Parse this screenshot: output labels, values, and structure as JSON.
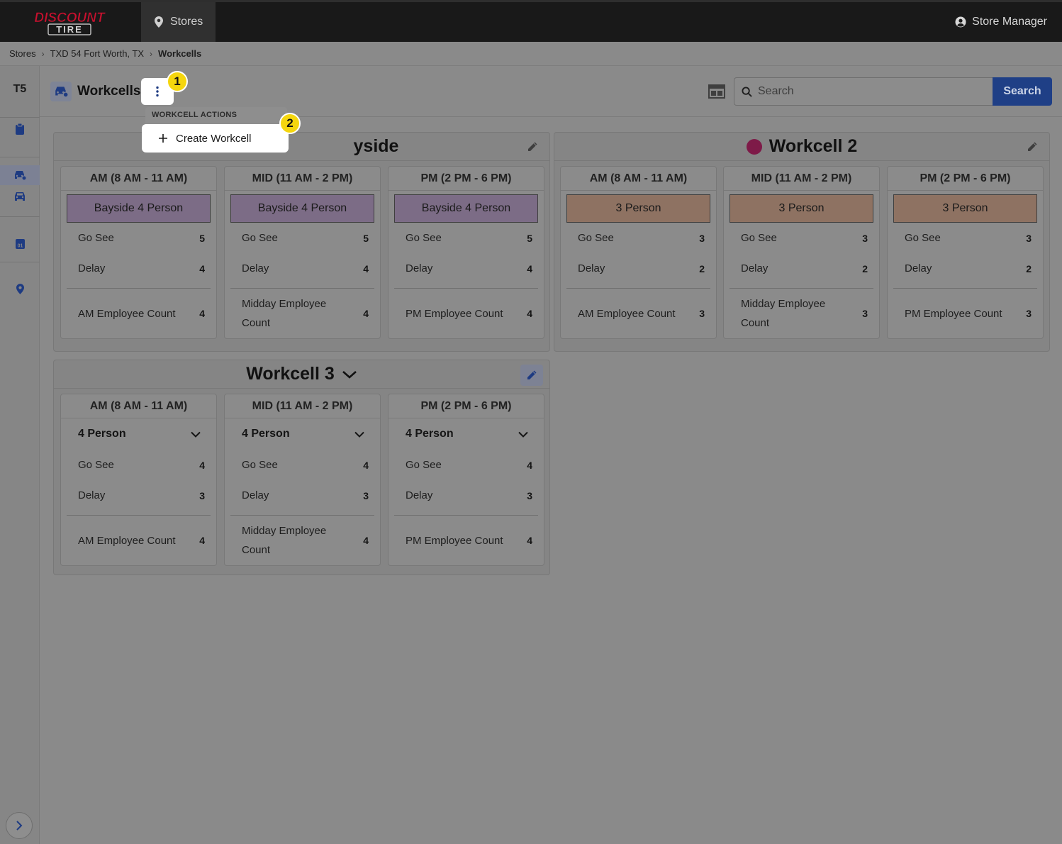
{
  "brand": {
    "line1": "DISCOUNT",
    "line2": "TIRE",
    "red": "#c8102e"
  },
  "topnav": {
    "stores_label": "Stores",
    "user_label": "Store Manager"
  },
  "breadcrumb": [
    "Stores",
    "TXD 54 Fort Worth, TX",
    "Workcells"
  ],
  "sidebar": {
    "store_code": "T5",
    "icons": [
      "clipboard-icon",
      "car-wrench-icon",
      "car-icon",
      "calendar-icon",
      "location-pin-icon",
      "chevron-right-icon"
    ]
  },
  "header": {
    "title": "Workcells",
    "search_placeholder": "Search",
    "search_button": "Search"
  },
  "menu": {
    "title": "WORKCELL ACTIONS",
    "create_label": "Create Workcell"
  },
  "steps": {
    "one": "1",
    "two": "2"
  },
  "colors": {
    "accent_blue": "#1f3f86",
    "workcell2_dot": "#7e1a48",
    "step_marker": "#f5d60e"
  },
  "workcells": [
    {
      "name": "yside",
      "columns": [
        {
          "header": "AM (8 AM - 11 AM)",
          "shift": "Bayside 4 Person",
          "go_see_label": "Go See",
          "go_see": "5",
          "delay_label": "Delay",
          "delay": "4",
          "employee_label": "AM Employee Count",
          "employee_count": "4"
        },
        {
          "header": "MID (11 AM - 2 PM)",
          "shift": "Bayside 4 Person",
          "go_see_label": "Go See",
          "go_see": "5",
          "delay_label": "Delay",
          "delay": "4",
          "employee_label": "Midday Employee Count",
          "employee_count": "4"
        },
        {
          "header": "PM (2 PM - 6 PM)",
          "shift": "Bayside 4 Person",
          "go_see_label": "Go See",
          "go_see": "5",
          "delay_label": "Delay",
          "delay": "4",
          "employee_label": "PM Employee Count",
          "employee_count": "4"
        }
      ]
    },
    {
      "name": "Workcell 2",
      "columns": [
        {
          "header": "AM (8 AM - 11 AM)",
          "shift": "3 Person",
          "go_see_label": "Go See",
          "go_see": "3",
          "delay_label": "Delay",
          "delay": "2",
          "employee_label": "AM Employee Count",
          "employee_count": "3"
        },
        {
          "header": "MID (11 AM - 2 PM)",
          "shift": "3 Person",
          "go_see_label": "Go See",
          "go_see": "3",
          "delay_label": "Delay",
          "delay": "2",
          "employee_label": "Midday Employee Count",
          "employee_count": "3"
        },
        {
          "header": "PM (2 PM - 6 PM)",
          "shift": "3 Person",
          "go_see_label": "Go See",
          "go_see": "3",
          "delay_label": "Delay",
          "delay": "2",
          "employee_label": "PM Employee Count",
          "employee_count": "3"
        }
      ]
    },
    {
      "name": "Workcell 3",
      "columns": [
        {
          "header": "AM (8 AM - 11 AM)",
          "shift": "4 Person",
          "go_see_label": "Go See",
          "go_see": "4",
          "delay_label": "Delay",
          "delay": "3",
          "employee_label": "AM Employee Count",
          "employee_count": "4"
        },
        {
          "header": "MID (11 AM - 2 PM)",
          "shift": "4 Person",
          "go_see_label": "Go See",
          "go_see": "4",
          "delay_label": "Delay",
          "delay": "3",
          "employee_label": "Midday Employee Count",
          "employee_count": "4"
        },
        {
          "header": "PM (2 PM - 6 PM)",
          "shift": "4 Person",
          "go_see_label": "Go See",
          "go_see": "4",
          "delay_label": "Delay",
          "delay": "3",
          "employee_label": "PM Employee Count",
          "employee_count": "4"
        }
      ]
    }
  ]
}
